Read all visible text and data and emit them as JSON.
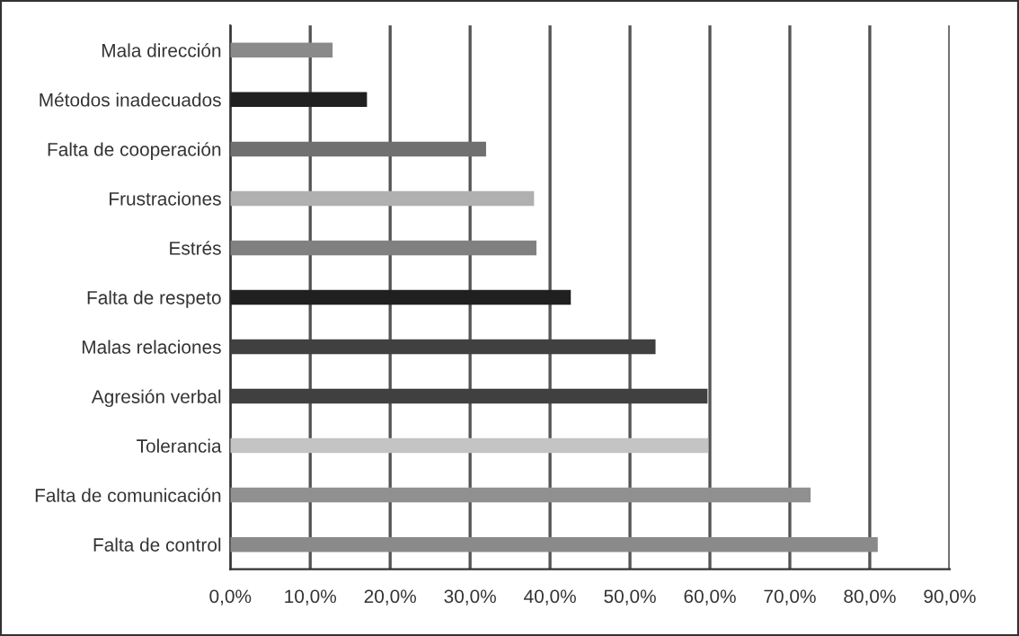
{
  "chart_data": {
    "type": "bar",
    "orientation": "horizontal",
    "categories": [
      "Mala dirección",
      "Métodos inadecuados",
      "Falta de cooperación",
      "Frustraciones",
      "Estrés",
      "Falta de respeto",
      "Malas relaciones",
      "Agresión verbal",
      "Tolerancia",
      "Falta de comunicación",
      "Falta de control"
    ],
    "values": [
      12.8,
      17.1,
      32.0,
      38.0,
      38.3,
      42.6,
      53.2,
      59.7,
      59.8,
      72.6,
      81.0
    ],
    "colors": [
      "#8a8a8a",
      "#202020",
      "#707070",
      "#b0b0b0",
      "#808080",
      "#202020",
      "#404040",
      "#404040",
      "#c4c4c4",
      "#909090",
      "#8a8a8a"
    ],
    "xlim": [
      0,
      90
    ],
    "xticks": [
      {
        "value": 0,
        "label": "0,0%"
      },
      {
        "value": 10,
        "label": "10,0%"
      },
      {
        "value": 20,
        "label": "20,0%"
      },
      {
        "value": 30,
        "label": "30,0%"
      },
      {
        "value": 40,
        "label": "40,0%"
      },
      {
        "value": 50,
        "label": "50,0%"
      },
      {
        "value": 60,
        "label": "60,0%"
      },
      {
        "value": 70,
        "label": "70,0%"
      },
      {
        "value": 80,
        "label": "80,0%"
      },
      {
        "value": 90,
        "label": "90,0%"
      }
    ],
    "grid": "x",
    "legend": false
  }
}
